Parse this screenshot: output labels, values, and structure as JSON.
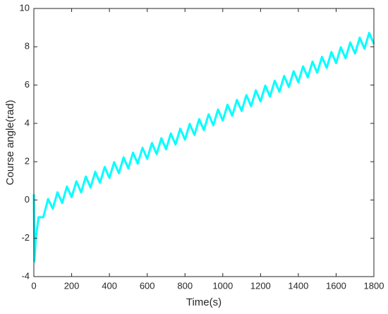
{
  "chart_data": {
    "type": "line",
    "x_label": "Time(s)",
    "y_label": "Course angle(rad)",
    "xlim": [
      0,
      1800
    ],
    "xticks": [
      0,
      200,
      400,
      600,
      800,
      1000,
      1200,
      1400,
      1600,
      1800
    ],
    "ylim": [
      -4,
      10
    ],
    "yticks": [
      -4,
      -2,
      0,
      2,
      4,
      6,
      8,
      10
    ],
    "grid": false,
    "series": [
      {
        "color": "#00ffff",
        "x": [
          0,
          3,
          10,
          25,
          50,
          75,
          100,
          125,
          150,
          175,
          200,
          225,
          250,
          275,
          300,
          325,
          350,
          375,
          400,
          425,
          450,
          475,
          500,
          525,
          550,
          575,
          600,
          625,
          650,
          675,
          700,
          725,
          750,
          775,
          800,
          825,
          850,
          875,
          900,
          925,
          950,
          975,
          1000,
          1025,
          1050,
          1075,
          1100,
          1125,
          1150,
          1175,
          1200,
          1225,
          1250,
          1275,
          1300,
          1325,
          1350,
          1375,
          1400,
          1425,
          1450,
          1475,
          1500,
          1525,
          1550,
          1575,
          1600,
          1625,
          1650,
          1675,
          1700,
          1725,
          1750,
          1775,
          1800
        ],
        "values": [
          0.3,
          -3.2,
          -2,
          -0.9,
          -0.9,
          0.05,
          -0.45,
          0.4,
          -0.15,
          0.7,
          0.15,
          0.975,
          0.4,
          1.225,
          0.65,
          1.475,
          0.9,
          1.725,
          1.15,
          1.975,
          1.4,
          2.225,
          1.65,
          2.475,
          1.9,
          2.725,
          2.15,
          2.975,
          2.4,
          3.225,
          2.65,
          3.475,
          2.9,
          3.725,
          3.15,
          3.975,
          3.4,
          4.225,
          3.65,
          4.475,
          3.9,
          4.725,
          4.15,
          4.975,
          4.4,
          5.225,
          4.65,
          5.475,
          4.9,
          5.725,
          5.15,
          5.975,
          5.4,
          6.225,
          5.65,
          6.475,
          5.9,
          6.725,
          6.15,
          6.975,
          6.4,
          7.225,
          6.65,
          7.475,
          6.9,
          7.725,
          7.15,
          7.975,
          7.4,
          8.225,
          7.65,
          8.475,
          7.9,
          8.725,
          8.15
        ]
      }
    ]
  }
}
